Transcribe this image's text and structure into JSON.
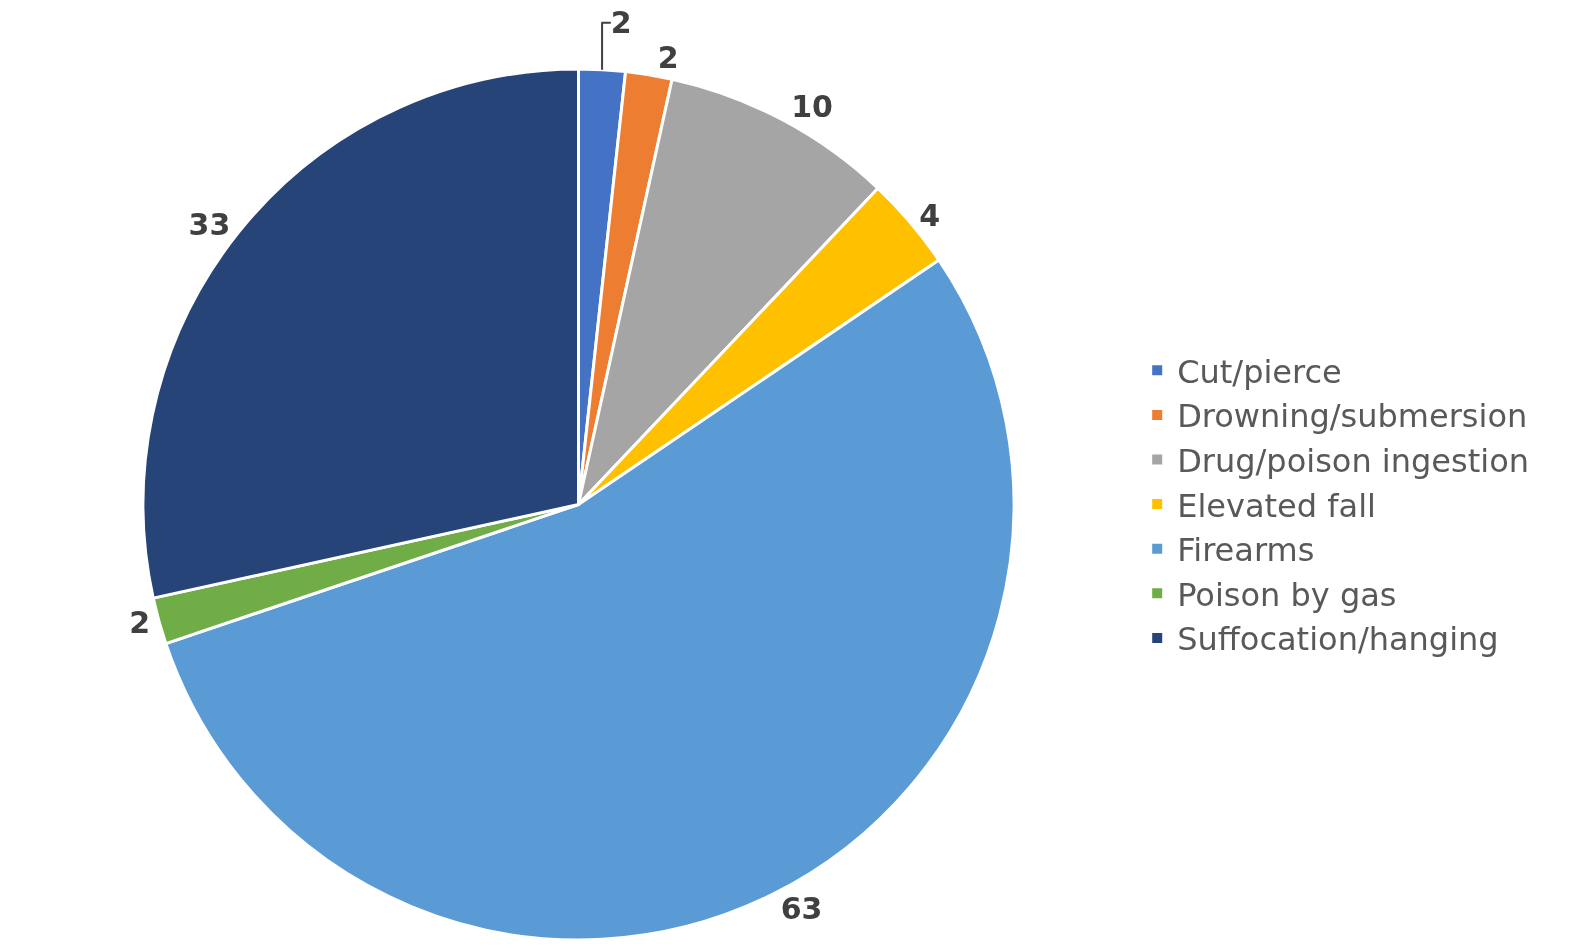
{
  "chart_data": {
    "type": "pie",
    "categories": [
      "Cut/pierce",
      "Drowning/submersion",
      "Drug/poison ingestion",
      "Elevated fall",
      "Firearms",
      "Poison by gas",
      "Suffocation/hanging"
    ],
    "values": [
      2,
      2,
      10,
      4,
      63,
      2,
      33
    ],
    "colors": [
      "#4472c4",
      "#ed7d31",
      "#a5a5a5",
      "#ffc000",
      "#5b9bd5",
      "#70ad47",
      "#264478"
    ],
    "data_labels": true,
    "legend": "right"
  }
}
